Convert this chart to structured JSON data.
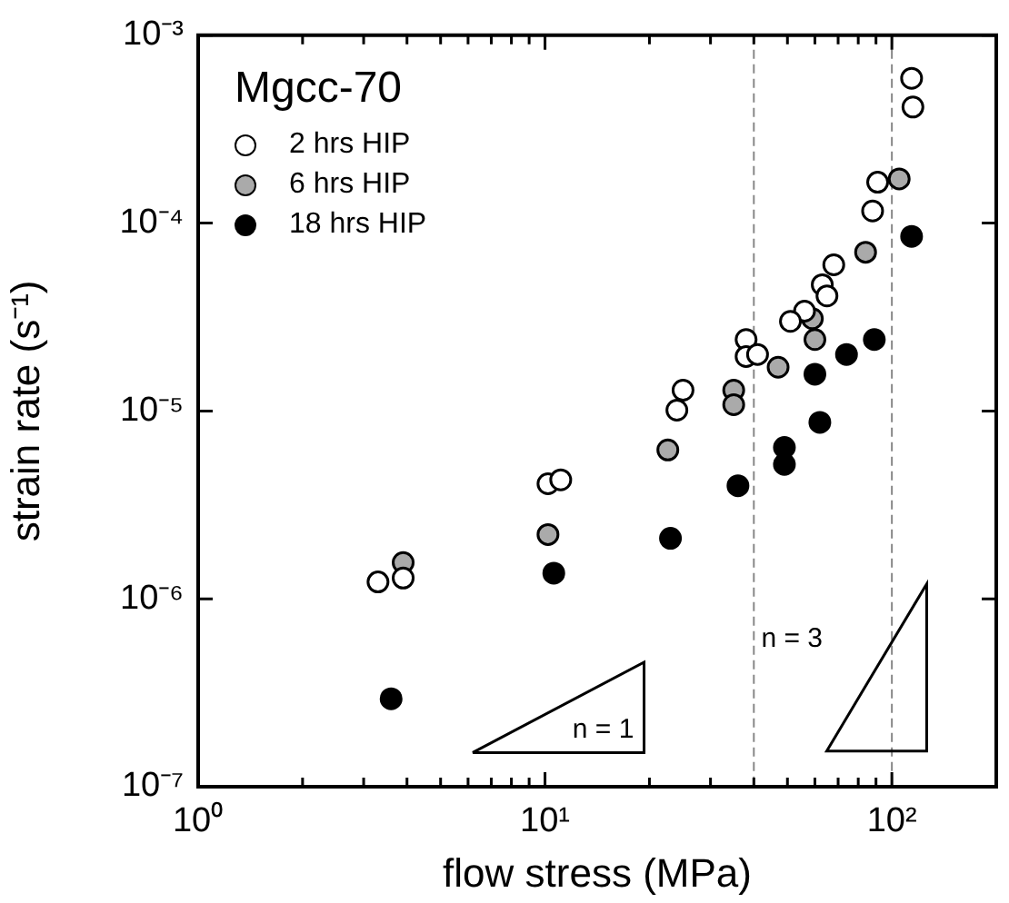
{
  "chart_data": {
    "type": "scatter",
    "xlabel": "flow stress (MPa)",
    "ylabel": "strain rate (s⁻¹)",
    "legend_title": "Mgcc-70",
    "legend": "top left",
    "grid": false,
    "marker": "circle",
    "log": "xy",
    "xlim": [
      1,
      200
    ],
    "ylim": [
      1e-07,
      0.001
    ],
    "xticks": [
      {
        "value": 1,
        "label": "10⁰"
      },
      {
        "value": 2,
        "label": null
      },
      {
        "value": 3,
        "label": null
      },
      {
        "value": 4,
        "label": null
      },
      {
        "value": 5,
        "label": null
      },
      {
        "value": 6,
        "label": null
      },
      {
        "value": 7,
        "label": null
      },
      {
        "value": 8,
        "label": null
      },
      {
        "value": 9,
        "label": null
      },
      {
        "value": 10,
        "label": "10¹"
      },
      {
        "value": 20,
        "label": null
      },
      {
        "value": 30,
        "label": null
      },
      {
        "value": 40,
        "label": null
      },
      {
        "value": 50,
        "label": null
      },
      {
        "value": 60,
        "label": null
      },
      {
        "value": 70,
        "label": null
      },
      {
        "value": 80,
        "label": null
      },
      {
        "value": 90,
        "label": null
      },
      {
        "value": 100,
        "label": "10²"
      }
    ],
    "yticks": [
      {
        "value": 1e-07,
        "label": "10⁻⁷"
      },
      {
        "value": 1e-06,
        "label": "10⁻⁶"
      },
      {
        "value": 1e-05,
        "label": "10⁻⁵"
      },
      {
        "value": 0.0001,
        "label": "10⁻⁴"
      },
      {
        "value": 0.001,
        "label": "10⁻³"
      }
    ],
    "ref_lines": [
      {
        "axis": "x",
        "value": 40,
        "color": "#888888",
        "line_style": "dashed"
      },
      {
        "axis": "x",
        "value": 100,
        "color": "#888888",
        "line_style": "dashed"
      }
    ],
    "annotations": [
      "n = 1",
      "n = 3"
    ],
    "series": [
      {
        "name": "2 hrs HIP",
        "color": "#ffffff",
        "x": [
          3.3,
          3.9,
          10.2,
          11.1,
          114,
          115,
          91,
          88,
          68,
          63,
          65,
          56,
          51,
          38,
          38,
          41,
          25,
          24
        ],
        "values": [
          1.23e-06,
          1.29e-06,
          4.1e-06,
          4.3e-06,
          0.00059,
          0.000415,
          0.000165,
          0.000116,
          6e-05,
          4.7e-05,
          4.1e-05,
          3.4e-05,
          3e-05,
          2.4e-05,
          1.95e-05,
          2e-05,
          1.29e-05,
          1.01e-05
        ]
      },
      {
        "name": "6 hrs HIP",
        "color": "#aaaaaa",
        "x": [
          3.9,
          10.2,
          105,
          84,
          59,
          60,
          47,
          35,
          35,
          22.6
        ],
        "values": [
          1.56e-06,
          2.2e-06,
          0.000172,
          7e-05,
          3.1e-05,
          2.4e-05,
          1.71e-05,
          1.29e-05,
          1.08e-05,
          6.2e-06
        ]
      },
      {
        "name": "18 hrs HIP",
        "color": "#000000",
        "x": [
          3.6,
          10.6,
          114,
          89,
          74,
          60,
          62,
          49,
          49,
          36,
          23
        ],
        "values": [
          2.94e-07,
          1.37e-06,
          8.5e-05,
          2.4e-05,
          2e-05,
          1.57e-05,
          8.7e-06,
          6.4e-06,
          5.2e-06,
          4e-06,
          2.1e-06
        ]
      }
    ]
  }
}
